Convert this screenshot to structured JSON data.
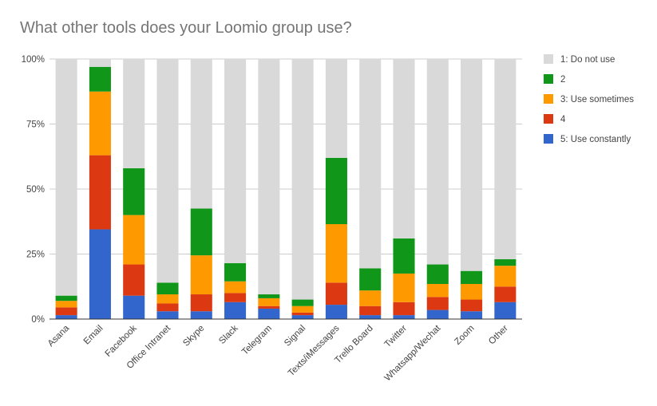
{
  "chart_data": {
    "type": "bar",
    "stacked": true,
    "normalized": true,
    "title": "What other tools does your Loomio group use?",
    "xlabel": "",
    "ylabel": "",
    "ylim": [
      0,
      100
    ],
    "yticks": [
      "0%",
      "25%",
      "50%",
      "75%",
      "100%"
    ],
    "yticks_values": [
      0,
      25,
      50,
      75,
      100
    ],
    "grid": true,
    "legend_position": "right",
    "categories": [
      "Asana",
      "Email",
      "Facebook",
      "Office Intranet",
      "Skype",
      "Slack",
      "Telegram",
      "Signal",
      "Texts/iMessages",
      "Trello Board",
      "Twitter",
      "Whatsapp/Wechat",
      "Zoom",
      "Other"
    ],
    "series": [
      {
        "name": "5: Use constantly",
        "color": "#3366cc",
        "values": [
          1.5,
          34.5,
          9,
          3,
          3,
          6.5,
          4,
          1.5,
          5.5,
          1.5,
          1.5,
          3.5,
          3,
          6.5
        ]
      },
      {
        "name": "4",
        "color": "#dc3912",
        "values": [
          3,
          28.5,
          12,
          3,
          6.5,
          3.5,
          1,
          1,
          8.5,
          3.5,
          5,
          5,
          4.5,
          6
        ]
      },
      {
        "name": "3: Use sometimes",
        "color": "#ff9900",
        "values": [
          2.5,
          24.5,
          19,
          3.5,
          15,
          4.5,
          3,
          2.5,
          22.5,
          6,
          11,
          5,
          6,
          8
        ]
      },
      {
        "name": "2",
        "color": "#109618",
        "values": [
          2,
          9.5,
          18,
          4.5,
          18,
          7,
          1.5,
          2.5,
          25.5,
          8.5,
          13.5,
          7.5,
          5,
          2.5
        ]
      },
      {
        "name": "1: Do not use",
        "color": "#d9d9d9",
        "values": [
          91,
          3,
          42,
          86,
          57.5,
          78.5,
          90.5,
          92.5,
          38,
          80.5,
          69,
          79,
          81.5,
          77
        ]
      }
    ],
    "legend_order": [
      "1: Do not use",
      "2",
      "3: Use sometimes",
      "4",
      "5: Use constantly"
    ]
  }
}
